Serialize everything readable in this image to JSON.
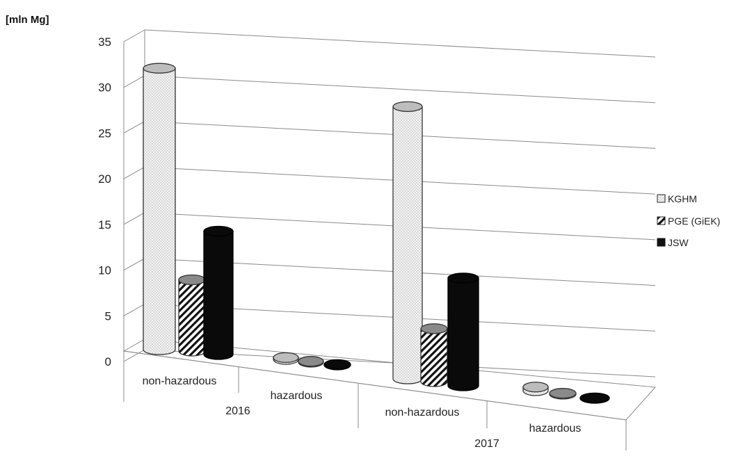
{
  "chart_data": {
    "type": "bar",
    "style": "3d-cylinder",
    "unit_label": "[mln Mg]",
    "ylim": [
      0,
      35
    ],
    "yticks": [
      0,
      5,
      10,
      15,
      20,
      25,
      30,
      35
    ],
    "grid": true,
    "legend_position": "right",
    "groups": [
      {
        "label": "2016",
        "categories": [
          "non-hazardous",
          "hazardous"
        ]
      },
      {
        "label": "2017",
        "categories": [
          "non-hazardous",
          "hazardous"
        ]
      }
    ],
    "categories": [
      "non-hazardous",
      "hazardous",
      "non-hazardous",
      "hazardous"
    ],
    "series": [
      {
        "name": "KGHM",
        "pattern": "dots",
        "values": [
          30.8,
          0.2,
          29.8,
          0.4
        ]
      },
      {
        "name": "PGE (GiEK)",
        "pattern": "hatch",
        "values": [
          7.8,
          0.1,
          5.8,
          0.1
        ]
      },
      {
        "name": "JSW",
        "pattern": "solid",
        "values": [
          13.5,
          0.05,
          11.8,
          0.05
        ]
      }
    ]
  }
}
